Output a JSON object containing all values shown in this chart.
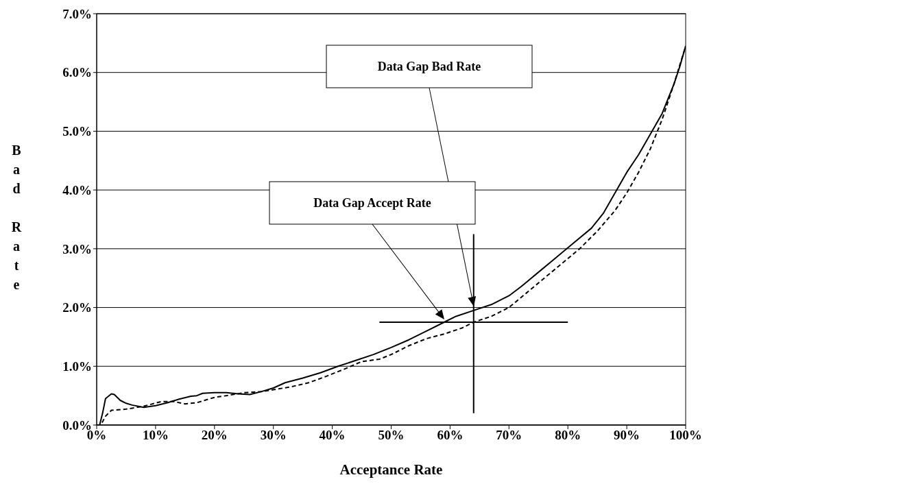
{
  "chart_data": {
    "type": "line",
    "xlabel": "Acceptance Rate",
    "ylabel": "Bad Rate",
    "xlim": [
      0,
      100
    ],
    "xticks": [
      {
        "value": 0,
        "label": "0%"
      },
      {
        "value": 10,
        "label": "10%"
      },
      {
        "value": 20,
        "label": "20%"
      },
      {
        "value": 30,
        "label": "30%"
      },
      {
        "value": 40,
        "label": "40%"
      },
      {
        "value": 50,
        "label": "50%"
      },
      {
        "value": 60,
        "label": "60%"
      },
      {
        "value": 70,
        "label": "70%"
      },
      {
        "value": 80,
        "label": "80%"
      },
      {
        "value": 90,
        "label": "90%"
      },
      {
        "value": 100,
        "label": "100%"
      }
    ],
    "ylim": [
      0,
      7
    ],
    "yticks": [
      {
        "value": 0,
        "label": "0.0%"
      },
      {
        "value": 1,
        "label": "1.0%"
      },
      {
        "value": 2,
        "label": "2.0%"
      },
      {
        "value": 3,
        "label": "3.0%"
      },
      {
        "value": 4,
        "label": "4.0%"
      },
      {
        "value": 5,
        "label": "5.0%"
      },
      {
        "value": 6,
        "label": "6.0%"
      },
      {
        "value": 7,
        "label": "7.0%"
      }
    ],
    "grid": "y",
    "marker": "none",
    "series": [
      {
        "color": "#000000",
        "line_style": "solid",
        "x": [
          0,
          0.5,
          1,
          1.5,
          2.5,
          3,
          4,
          5,
          6,
          8,
          10,
          12,
          14,
          16,
          17,
          18,
          20,
          22,
          24,
          26,
          28,
          30,
          32,
          35,
          38,
          41,
          44,
          47,
          50,
          53,
          56,
          59,
          61,
          64,
          67,
          70,
          72,
          75,
          78,
          81,
          84,
          86,
          88,
          90,
          92,
          94,
          96,
          98,
          99,
          100
        ],
        "values": [
          0,
          0,
          0.2,
          0.45,
          0.53,
          0.52,
          0.42,
          0.37,
          0.34,
          0.3,
          0.33,
          0.38,
          0.44,
          0.49,
          0.5,
          0.54,
          0.55,
          0.55,
          0.53,
          0.52,
          0.57,
          0.63,
          0.72,
          0.8,
          0.89,
          1.0,
          1.1,
          1.2,
          1.32,
          1.45,
          1.6,
          1.75,
          1.85,
          1.95,
          2.05,
          2.2,
          2.35,
          2.6,
          2.85,
          3.1,
          3.35,
          3.6,
          3.95,
          4.3,
          4.6,
          4.95,
          5.3,
          5.8,
          6.1,
          6.45
        ]
      },
      {
        "color": "#000000",
        "line_style": "dashed",
        "x": [
          0,
          0.7,
          1.5,
          2.5,
          5,
          8,
          11,
          13,
          15,
          17,
          20,
          22,
          25,
          28,
          30,
          33,
          36,
          39,
          42,
          45,
          48,
          50,
          53,
          56,
          59,
          62,
          64,
          67,
          70,
          73,
          76,
          79,
          82,
          85,
          88,
          90,
          92,
          94,
          96,
          98,
          100
        ],
        "values": [
          0,
          0,
          0.15,
          0.25,
          0.27,
          0.32,
          0.4,
          0.4,
          0.36,
          0.38,
          0.47,
          0.5,
          0.55,
          0.57,
          0.6,
          0.65,
          0.72,
          0.83,
          0.95,
          1.08,
          1.12,
          1.2,
          1.35,
          1.47,
          1.55,
          1.65,
          1.75,
          1.85,
          2.0,
          2.25,
          2.5,
          2.75,
          3.0,
          3.3,
          3.65,
          3.95,
          4.3,
          4.7,
          5.2,
          5.8,
          6.45
        ]
      },
      {
        "type": "line",
        "color": "#000000",
        "line_style": "solid",
        "x": [
          48,
          80
        ],
        "values": [
          1.75,
          1.75
        ]
      },
      {
        "type": "line",
        "color": "#000000",
        "line_style": "solid",
        "x": [
          64,
          64
        ],
        "values": [
          0.2,
          3.25
        ]
      }
    ],
    "annotations": [
      "Data Gap Bad Rate",
      "Data Gap Accept Rate"
    ]
  }
}
